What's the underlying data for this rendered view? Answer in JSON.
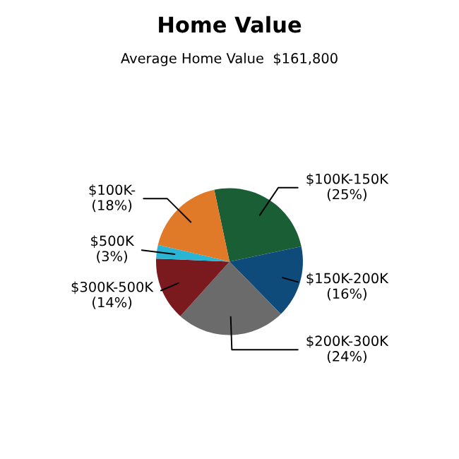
{
  "chart_data": {
    "type": "pie",
    "title": "Home Value",
    "subtitle": "Average Home Value  $161,800",
    "categories": [
      "$100K-150K",
      "$150K-200K",
      "$200K-300K",
      "$300K-500K",
      "$500K",
      "$100K-"
    ],
    "values": [
      25,
      16,
      24,
      14,
      3,
      18
    ],
    "value_labels": [
      "(25%)",
      "(16%)",
      "(24%)",
      "(14%)",
      "(3%)",
      "(18%)"
    ],
    "colors": [
      "#1a5e35",
      "#0e4b7a",
      "#6b6b6b",
      "#7a1a1f",
      "#2bb5d4",
      "#e07a28"
    ],
    "legend": false
  }
}
